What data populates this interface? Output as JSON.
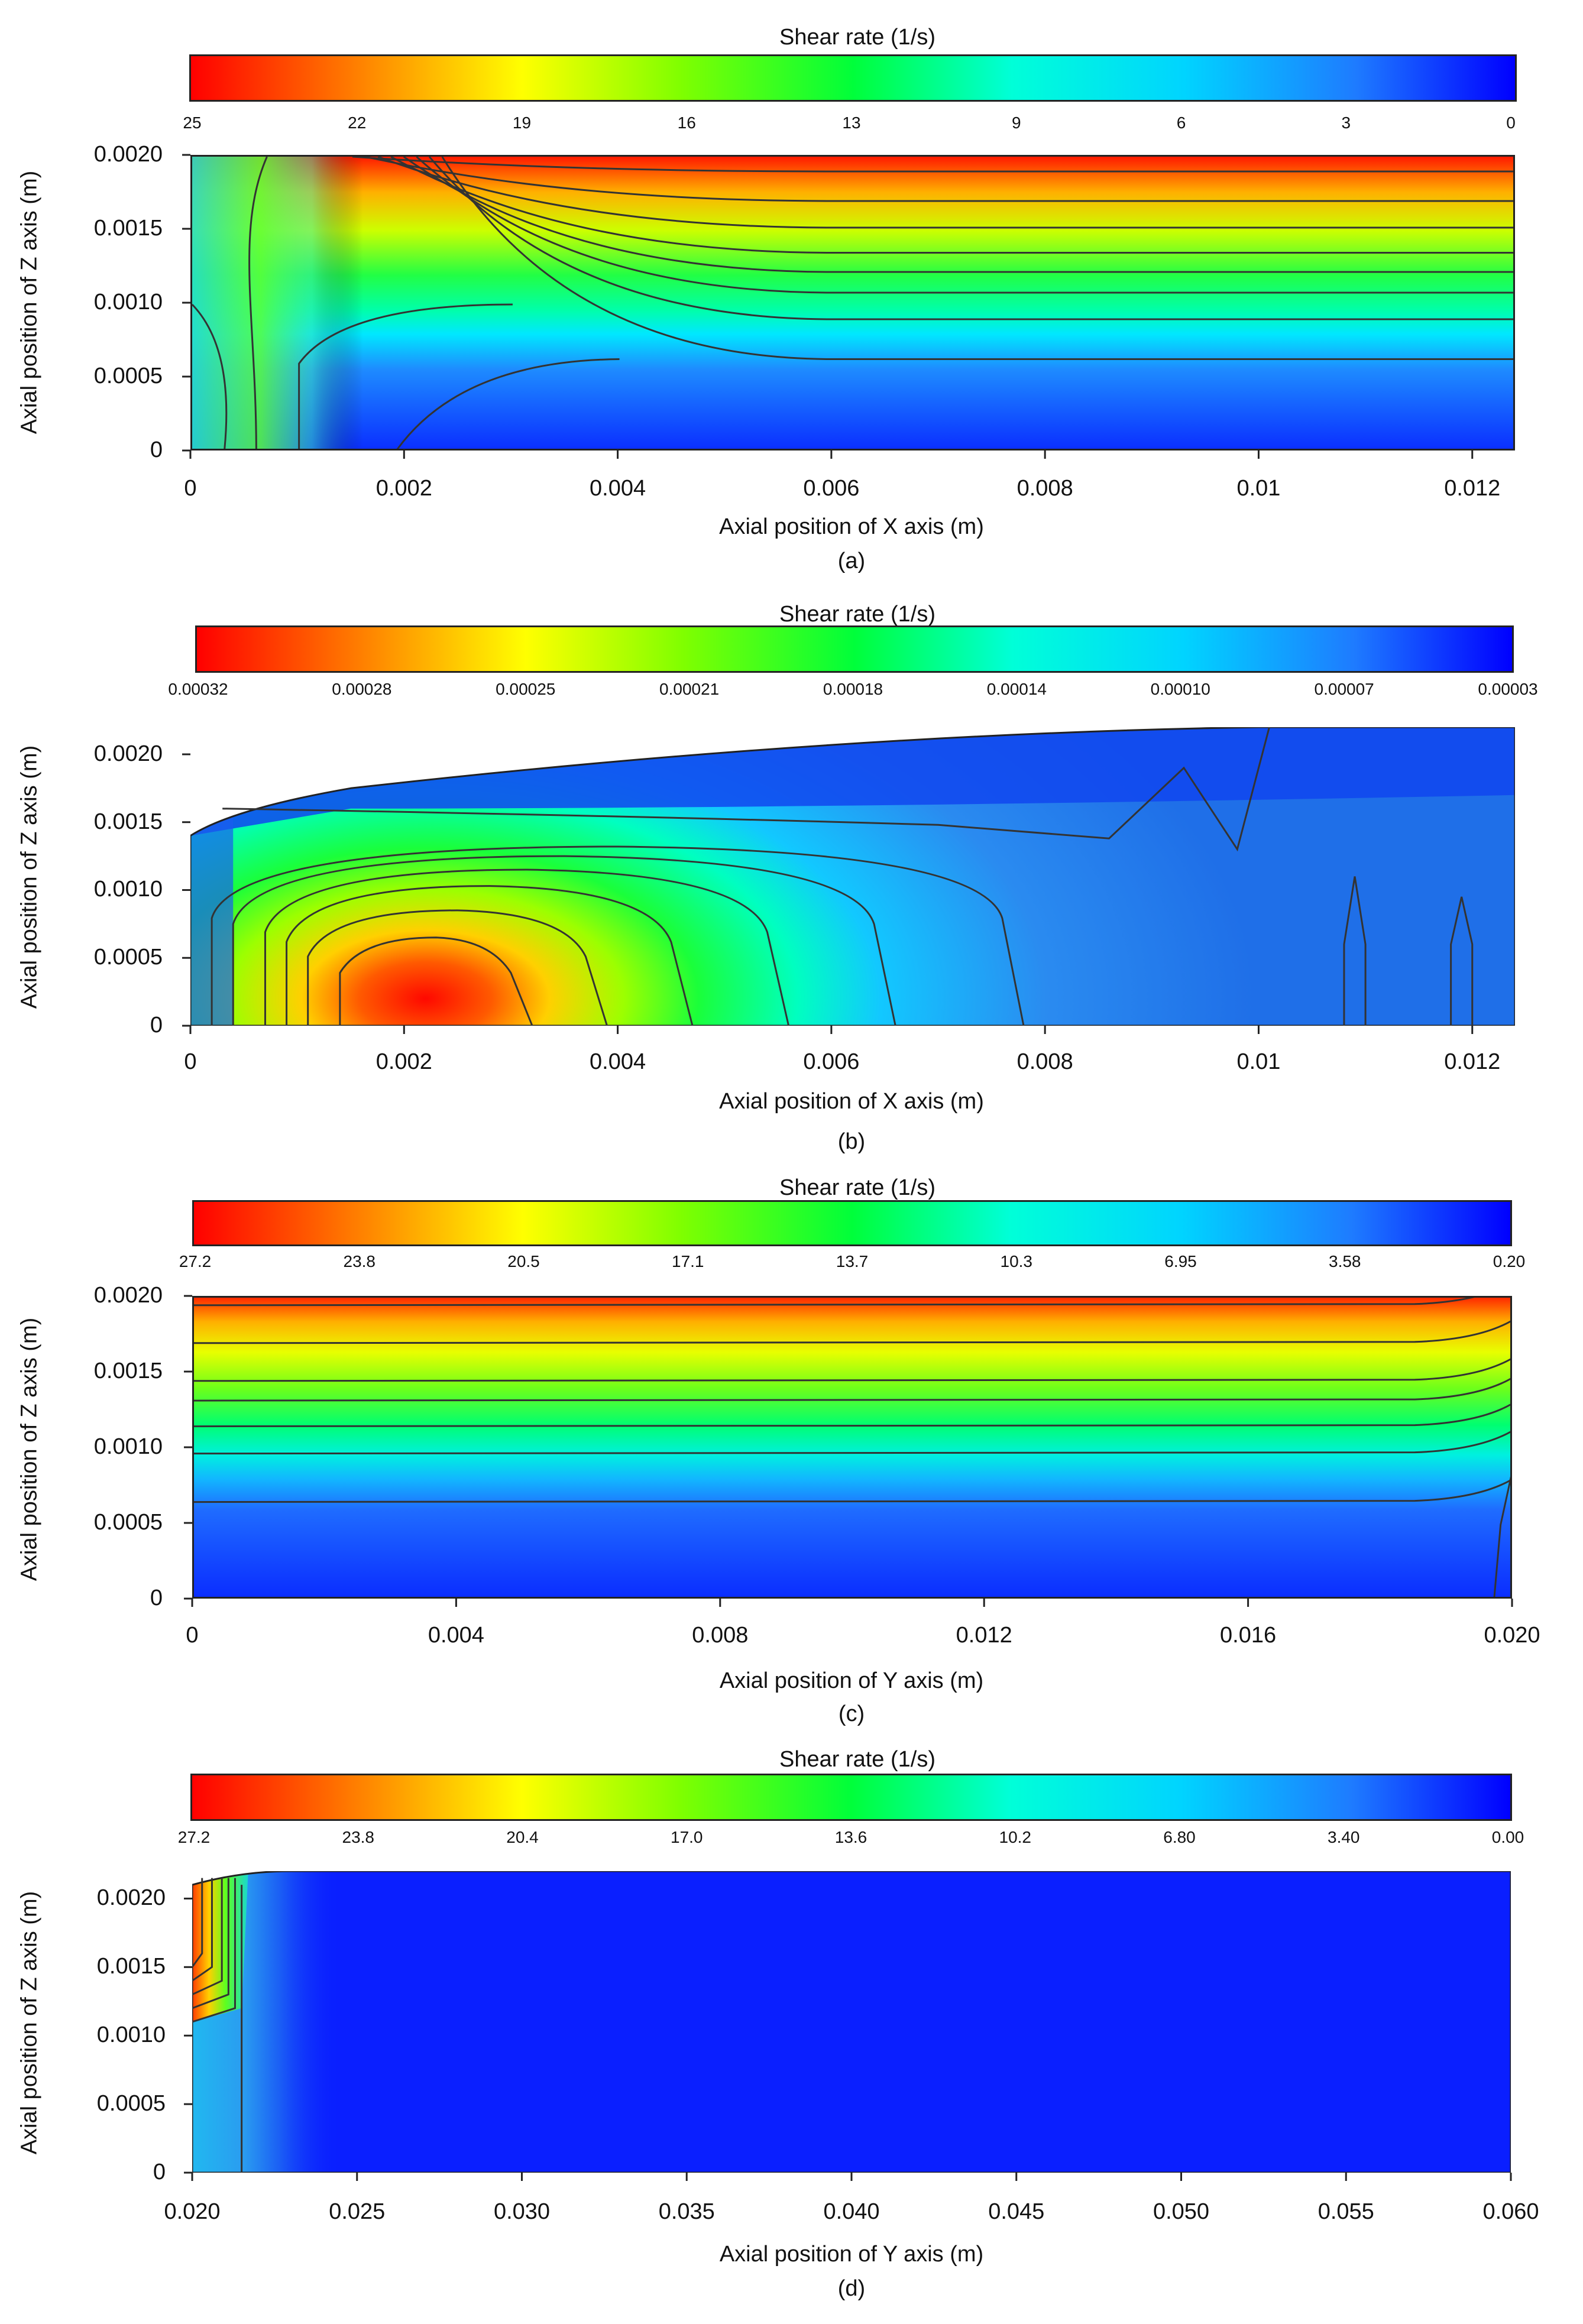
{
  "chart_data": [
    {
      "id": "a",
      "type": "heatmap",
      "colorbar_title": "Shear rate (1/s)",
      "colorbar_ticks": [
        "25",
        "22",
        "19",
        "16",
        "13",
        "9",
        "6",
        "3",
        "0"
      ],
      "xlabel": "Axial position of X axis (m)",
      "ylabel": "Axial position of Z axis (m)",
      "xticks": [
        "0",
        "0.002",
        "0.004",
        "0.006",
        "0.008",
        "0.01",
        "0.012"
      ],
      "xtick_values": [
        0,
        0.002,
        0.004,
        0.006,
        0.008,
        0.01,
        0.012
      ],
      "yticks": [
        "0",
        "0.0005",
        "0.0010",
        "0.0015",
        "0.0020"
      ],
      "ytick_values": [
        0,
        0.0005,
        0.001,
        0.0015,
        0.002
      ],
      "xlim": [
        0,
        0.0124
      ],
      "ylim": [
        0,
        0.002
      ],
      "caption": "(a)",
      "value_range": [
        0,
        25
      ],
      "description_profile": "shear rate rises with Z; max ~25 at top wall, ~0 at bottom"
    },
    {
      "id": "b",
      "type": "heatmap",
      "colorbar_title": "Shear rate (1/s)",
      "colorbar_ticks": [
        "0.00032",
        "0.00028",
        "0.00025",
        "0.00021",
        "0.00018",
        "0.00014",
        "0.00010",
        "0.00007",
        "0.00003"
      ],
      "xlabel": "Axial position of X axis (m)",
      "ylabel": "Axial position of Z axis (m)",
      "xticks": [
        "0",
        "0.002",
        "0.004",
        "0.006",
        "0.008",
        "0.01",
        "0.012"
      ],
      "xtick_values": [
        0,
        0.002,
        0.004,
        0.006,
        0.008,
        0.01,
        0.012
      ],
      "yticks": [
        "0",
        "0.0005",
        "0.0010",
        "0.0015",
        "0.0020"
      ],
      "ytick_values": [
        0,
        0.0005,
        0.001,
        0.0015,
        0.002
      ],
      "xlim": [
        0,
        0.0124
      ],
      "ylim": [
        0,
        0.0022
      ],
      "caption": "(b)",
      "value_range": [
        3e-05,
        0.00032
      ],
      "peak": {
        "x": 0.0022,
        "y": 0.0002,
        "value": 0.00032
      }
    },
    {
      "id": "c",
      "type": "heatmap",
      "colorbar_title": "Shear rate (1/s)",
      "colorbar_ticks": [
        "27.2",
        "23.8",
        "20.5",
        "17.1",
        "13.7",
        "10.3",
        "6.95",
        "3.58",
        "0.20"
      ],
      "xlabel": "Axial position of Y axis (m)",
      "ylabel": "Axial position of Z axis (m)",
      "xticks": [
        "0",
        "0.004",
        "0.008",
        "0.012",
        "0.016",
        "0.020"
      ],
      "xtick_values": [
        0,
        0.004,
        0.008,
        0.012,
        0.016,
        0.02
      ],
      "yticks": [
        "0",
        "0.0005",
        "0.0010",
        "0.0015",
        "0.0020"
      ],
      "ytick_values": [
        0,
        0.0005,
        0.001,
        0.0015,
        0.002
      ],
      "xlim": [
        0,
        0.02
      ],
      "ylim": [
        0,
        0.002
      ],
      "caption": "(c)",
      "value_range": [
        0.2,
        27.2
      ]
    },
    {
      "id": "d",
      "type": "heatmap",
      "colorbar_title": "Shear rate (1/s)",
      "colorbar_ticks": [
        "27.2",
        "23.8",
        "20.4",
        "17.0",
        "13.6",
        "10.2",
        "6.80",
        "3.40",
        "0.00"
      ],
      "xlabel": "Axial position of Y axis (m)",
      "ylabel": "Axial position of Z axis (m)",
      "xticks": [
        "0.020",
        "0.025",
        "0.030",
        "0.035",
        "0.040",
        "0.045",
        "0.050",
        "0.055",
        "0.060"
      ],
      "xtick_values": [
        0.02,
        0.025,
        0.03,
        0.035,
        0.04,
        0.045,
        0.05,
        0.055,
        0.06
      ],
      "yticks": [
        "0",
        "0.0005",
        "0.0010",
        "0.0015",
        "0.0020"
      ],
      "ytick_values": [
        0,
        0.0005,
        0.001,
        0.0015,
        0.002
      ],
      "xlim": [
        0.02,
        0.06
      ],
      "ylim": [
        0,
        0.0022
      ],
      "caption": "(d)",
      "value_range": [
        0,
        27.2
      ]
    }
  ]
}
